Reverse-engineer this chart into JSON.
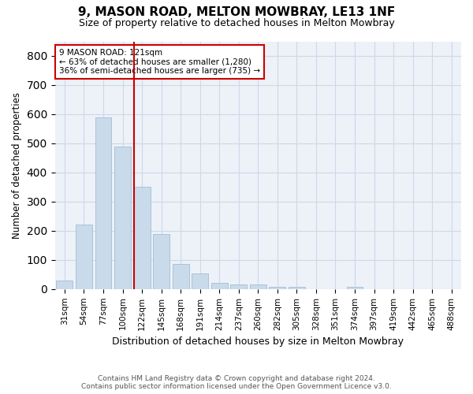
{
  "title": "9, MASON ROAD, MELTON MOWBRAY, LE13 1NF",
  "subtitle": "Size of property relative to detached houses in Melton Mowbray",
  "xlabel": "Distribution of detached houses by size in Melton Mowbray",
  "ylabel": "Number of detached properties",
  "bar_color": "#c9daea",
  "bar_edgecolor": "#a8c4d8",
  "categories": [
    "31sqm",
    "54sqm",
    "77sqm",
    "100sqm",
    "122sqm",
    "145sqm",
    "168sqm",
    "191sqm",
    "214sqm",
    "237sqm",
    "260sqm",
    "282sqm",
    "305sqm",
    "328sqm",
    "351sqm",
    "374sqm",
    "397sqm",
    "419sqm",
    "442sqm",
    "465sqm",
    "488sqm"
  ],
  "values": [
    30,
    220,
    590,
    490,
    350,
    190,
    85,
    53,
    20,
    15,
    15,
    8,
    8,
    0,
    0,
    8,
    0,
    0,
    0,
    0,
    0
  ],
  "vline_color": "#cc0000",
  "vline_x_idx": 4,
  "ylim": [
    0,
    850
  ],
  "yticks": [
    0,
    100,
    200,
    300,
    400,
    500,
    600,
    700,
    800
  ],
  "annotation_line1": "9 MASON ROAD: 121sqm",
  "annotation_line2": "← 63% of detached houses are smaller (1,280)",
  "annotation_line3": "36% of semi-detached houses are larger (735) →",
  "annotation_box_facecolor": "#ffffff",
  "annotation_box_edgecolor": "#cc0000",
  "grid_color": "#cdd8e8",
  "bg_color": "#edf1f8",
  "footer_line1": "Contains HM Land Registry data © Crown copyright and database right 2024.",
  "footer_line2": "Contains public sector information licensed under the Open Government Licence v3.0."
}
